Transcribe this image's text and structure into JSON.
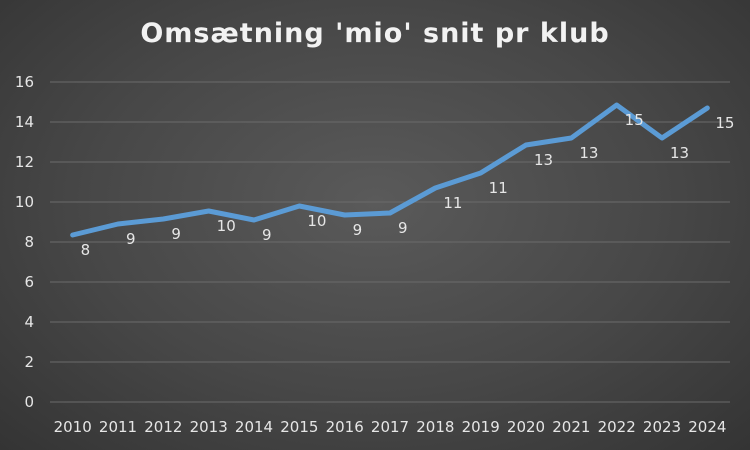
{
  "chart_data": {
    "type": "line",
    "title": "Omsætning 'mio' snit pr klub",
    "xlabel": "",
    "ylabel": "",
    "x": [
      "2010",
      "2011",
      "2012",
      "2013",
      "2014",
      "2015",
      "2016",
      "2017",
      "2018",
      "2019",
      "2020",
      "2021",
      "2022",
      "2023",
      "2024"
    ],
    "series": [
      {
        "values": [
          8.35,
          8.9,
          9.15,
          9.55,
          9.1,
          9.8,
          9.35,
          9.45,
          10.7,
          11.45,
          12.85,
          13.2,
          14.85,
          13.2,
          14.7
        ],
        "labels": [
          "8",
          "9",
          "9",
          "10",
          "9",
          "10",
          "9",
          "9",
          "11",
          "11",
          "13",
          "13",
          "15",
          "13",
          "15"
        ],
        "color": "#5b9bd5"
      }
    ],
    "ylim": [
      0,
      16
    ],
    "yticks": [
      0,
      2,
      4,
      6,
      8,
      10,
      12,
      14,
      16
    ],
    "grid": true,
    "legend": "none"
  }
}
